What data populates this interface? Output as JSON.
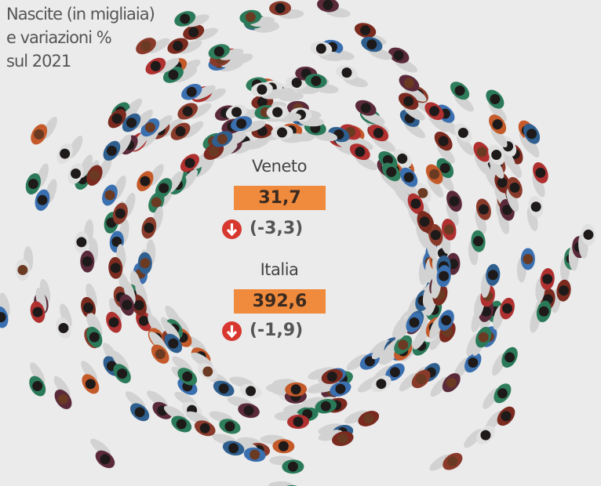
{
  "header": {
    "title_lines": [
      "Nascite (in migliaia)",
      "e variazioni %",
      "sul 2021"
    ]
  },
  "regions": [
    {
      "name": "Veneto",
      "value": "31,7",
      "change": "(-3,3)"
    },
    {
      "name": "Italia",
      "value": "392,6",
      "change": "(-1,9)"
    }
  ]
}
